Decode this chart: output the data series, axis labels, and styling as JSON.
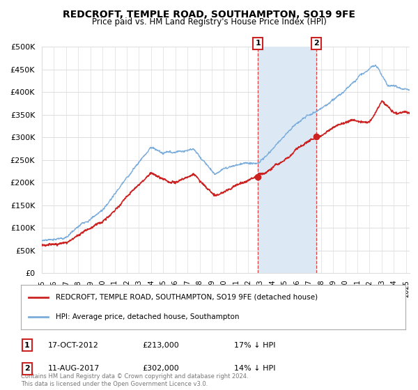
{
  "title": "REDCROFT, TEMPLE ROAD, SOUTHAMPTON, SO19 9FE",
  "subtitle": "Price paid vs. HM Land Registry's House Price Index (HPI)",
  "ylim": [
    0,
    500000
  ],
  "yticks": [
    0,
    50000,
    100000,
    150000,
    200000,
    250000,
    300000,
    350000,
    400000,
    450000,
    500000
  ],
  "ytick_labels": [
    "£0",
    "£50K",
    "£100K",
    "£150K",
    "£200K",
    "£250K",
    "£300K",
    "£350K",
    "£400K",
    "£450K",
    "£500K"
  ],
  "hpi_color": "#7aaddb",
  "price_color": "#cc2222",
  "sale1_year": 2012.8,
  "sale2_year": 2017.6,
  "sale1_price": 213000,
  "sale2_price": 302000,
  "sale1_date": "17-OCT-2012",
  "sale2_date": "11-AUG-2017",
  "sale1_hpi_pct": "17% ↓ HPI",
  "sale2_hpi_pct": "14% ↓ HPI",
  "legend_label1": "REDCROFT, TEMPLE ROAD, SOUTHAMPTON, SO19 9FE (detached house)",
  "legend_label2": "HPI: Average price, detached house, Southampton",
  "footnote": "Contains HM Land Registry data © Crown copyright and database right 2024.\nThis data is licensed under the Open Government Licence v3.0.",
  "background_color": "#ffffff",
  "shaded_region_color": "#dce9f5",
  "grid_color": "#dddddd",
  "xlim_start": 1995,
  "xlim_end": 2025.3
}
